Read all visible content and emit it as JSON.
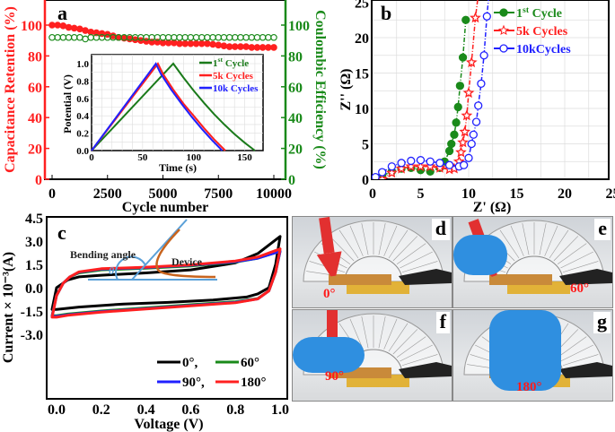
{
  "chart_data": [
    {
      "panel": "a",
      "type": "scatter",
      "xlabel": "Cycle number",
      "ylabel_left": "Capacitance Retention (%)",
      "ylabel_right": "Coulombic Efficiency (%)",
      "xlim": [
        -500,
        10500
      ],
      "ylim": [
        0,
        116
      ],
      "xticks": [
        "0",
        "2500",
        "5000",
        "7500",
        "10000"
      ],
      "yticks": [
        "0",
        "20",
        "40",
        "60",
        "80",
        "100"
      ],
      "colors": {
        "retention": "#ff2020",
        "coulombic": "#1a8a1a"
      },
      "x": [
        0,
        250,
        500,
        750,
        1000,
        1250,
        1500,
        1750,
        2000,
        2250,
        2500,
        2750,
        3000,
        3250,
        3500,
        3750,
        4000,
        4250,
        4500,
        4750,
        5000,
        5250,
        5500,
        5750,
        6000,
        6250,
        6500,
        6750,
        7000,
        7250,
        7500,
        7750,
        8000,
        8250,
        8500,
        8750,
        9000,
        9250,
        9500,
        9750,
        10000
      ],
      "series": [
        {
          "key": "retention",
          "values": [
            100,
            100,
            99.5,
            98.5,
            98,
            97.5,
            96.5,
            95.5,
            95,
            94.5,
            94,
            93,
            92,
            91.5,
            91,
            90.5,
            90,
            89.5,
            89,
            89,
            88.5,
            88.5,
            88.5,
            88,
            88,
            88,
            88,
            88,
            88,
            87.5,
            87,
            86.5,
            86,
            86,
            86,
            86,
            85.5,
            85.5,
            85.5,
            85.5,
            85.5
          ]
        },
        {
          "key": "coulombic",
          "values": [
            92,
            92,
            92,
            92,
            92,
            92,
            91,
            92,
            92,
            92,
            92,
            92,
            92,
            92,
            92,
            92,
            92,
            92,
            92,
            92,
            92,
            92,
            92,
            92,
            92,
            92,
            92,
            92,
            92,
            92,
            92,
            92,
            92,
            92,
            92,
            92,
            92,
            92,
            92,
            92,
            92
          ]
        }
      ],
      "inset": {
        "type": "line",
        "xlabel": "Time (s)",
        "ylabel": "Potential (V)",
        "xlim": [
          0,
          168
        ],
        "ylim": [
          0,
          1.1
        ],
        "xticks": [
          "0",
          "50",
          "100",
          "150"
        ],
        "yticks": [
          "0.0",
          "0.2",
          "0.4",
          "0.6",
          "0.8",
          "1.0"
        ],
        "grid": true,
        "legend_position": "top-right",
        "series": [
          {
            "name": "1st Cycle",
            "color": "#1a7a1a",
            "points": [
              [
                0,
                0
              ],
              [
                80,
                1.0
              ],
              [
                90,
                0.84
              ],
              [
                100,
                0.69
              ],
              [
                110,
                0.55
              ],
              [
                120,
                0.42
              ],
              [
                130,
                0.3
              ],
              [
                140,
                0.19
              ],
              [
                150,
                0.09
              ],
              [
                160,
                0
              ]
            ]
          },
          {
            "name": "5k Cycles",
            "color": "#ff2020",
            "points": [
              [
                0,
                0
              ],
              [
                65,
                1.0
              ],
              [
                70,
                0.88
              ],
              [
                80,
                0.7
              ],
              [
                90,
                0.54
              ],
              [
                100,
                0.4
              ],
              [
                110,
                0.26
              ],
              [
                120,
                0.13
              ],
              [
                131,
                0
              ]
            ]
          },
          {
            "name": "10k Cycles",
            "color": "#2020ff",
            "points": [
              [
                0,
                0
              ],
              [
                63,
                1.0
              ],
              [
                68,
                0.88
              ],
              [
                78,
                0.7
              ],
              [
                88,
                0.54
              ],
              [
                98,
                0.39
              ],
              [
                108,
                0.25
              ],
              [
                118,
                0.12
              ],
              [
                128,
                0
              ]
            ]
          }
        ]
      }
    },
    {
      "panel": "b",
      "type": "scatter",
      "xlabel": "Z' (Ω)",
      "ylabel": "Z'' (Ω)",
      "xlim": [
        0,
        25
      ],
      "ylim": [
        0,
        25
      ],
      "xticks": [
        "0",
        "5",
        "10",
        "15",
        "20",
        "25"
      ],
      "yticks": [
        "0",
        "5",
        "10",
        "15",
        "20",
        "25"
      ],
      "grid": true,
      "legend_position": "top-right",
      "series": [
        {
          "name": "1st Cycle",
          "color": "#1a8a1a",
          "marker": "filled-circle",
          "points": [
            [
              0.3,
              0
            ],
            [
              1,
              0.5
            ],
            [
              2,
              1.1
            ],
            [
              3,
              1.5
            ],
            [
              4,
              1.6
            ],
            [
              5,
              1.3
            ],
            [
              6,
              1.1
            ],
            [
              7,
              1.6
            ],
            [
              7.5,
              2.5
            ],
            [
              8,
              4
            ],
            [
              8.2,
              5
            ],
            [
              8.5,
              6.3
            ],
            [
              8.7,
              8
            ],
            [
              8.9,
              10.2
            ],
            [
              9.1,
              13.2
            ],
            [
              9.4,
              17.2
            ],
            [
              9.7,
              22.5
            ]
          ]
        },
        {
          "name": "5k Cycles",
          "color": "#ff2020",
          "marker": "open-star",
          "points": [
            [
              1,
              0
            ],
            [
              2,
              0.9
            ],
            [
              3,
              1.5
            ],
            [
              4,
              1.8
            ],
            [
              5,
              1.8
            ],
            [
              6,
              1.8
            ],
            [
              7,
              1.6
            ],
            [
              8,
              1.4
            ],
            [
              8.5,
              1.5
            ],
            [
              9,
              2.5
            ],
            [
              9.2,
              3.8
            ],
            [
              9.4,
              5.2
            ],
            [
              9.6,
              6.7
            ],
            [
              9.8,
              9
            ],
            [
              10,
              12.2
            ],
            [
              10.3,
              16.5
            ],
            [
              10.7,
              22.8
            ],
            [
              11,
              26
            ]
          ]
        },
        {
          "name": "10kCycles",
          "color": "#2020ff",
          "marker": "open-circle",
          "points": [
            [
              0.3,
              0.3
            ],
            [
              1,
              1
            ],
            [
              2,
              1.8
            ],
            [
              3,
              2.3
            ],
            [
              4,
              2.6
            ],
            [
              5,
              2.7
            ],
            [
              6,
              2.5
            ],
            [
              7,
              2.3
            ],
            [
              8,
              2
            ],
            [
              9,
              1.8
            ],
            [
              9.5,
              2
            ],
            [
              10,
              3
            ],
            [
              10.3,
              5
            ],
            [
              10.5,
              6.3
            ],
            [
              10.8,
              8.1
            ],
            [
              11,
              10.4
            ],
            [
              11.3,
              13.5
            ],
            [
              11.6,
              17.5
            ],
            [
              11.9,
              23
            ],
            [
              12.1,
              26
            ]
          ]
        }
      ]
    },
    {
      "panel": "c",
      "type": "line",
      "xlabel": "Voltage (V)",
      "ylabel": "Current × 10⁻³(A)",
      "xlim": [
        -0.045,
        1.03
      ],
      "ylim": [
        -3.3,
        4.5
      ],
      "xticks": [
        "0.0",
        "0.2",
        "0.4",
        "0.6",
        "0.8",
        "1.0"
      ],
      "yticks": [
        "-3.0",
        "-1.5",
        "0.0",
        "1.5",
        "3.0",
        "4.5"
      ],
      "legend_position": "bottom-right",
      "inset_labels": {
        "bending": "Bending angle",
        "theta": "θ",
        "device": "Device"
      },
      "series": [
        {
          "name": "0°,",
          "color": "#000000",
          "points": [
            [
              -0.02,
              -1.4
            ],
            [
              0,
              0
            ],
            [
              0.05,
              0.5
            ],
            [
              0.1,
              0.7
            ],
            [
              0.2,
              0.8
            ],
            [
              0.4,
              0.95
            ],
            [
              0.6,
              1.15
            ],
            [
              0.8,
              1.6
            ],
            [
              0.9,
              2.2
            ],
            [
              1.0,
              3.3
            ],
            [
              0.98,
              1.5
            ],
            [
              0.95,
              0
            ],
            [
              0.9,
              -0.4
            ],
            [
              0.85,
              -0.6
            ],
            [
              0.7,
              -0.8
            ],
            [
              0.5,
              -0.95
            ],
            [
              0.3,
              -1.05
            ],
            [
              0.1,
              -1.25
            ],
            [
              0,
              -1.4
            ],
            [
              -0.02,
              -1.4
            ]
          ]
        },
        {
          "name": "60°",
          "color": "#1a8a1a",
          "points": [
            [
              -0.02,
              -1.8
            ],
            [
              0,
              -0.5
            ],
            [
              0.03,
              0.3
            ],
            [
              0.06,
              0.7
            ],
            [
              0.1,
              0.95
            ],
            [
              0.2,
              1.15
            ],
            [
              0.4,
              1.25
            ],
            [
              0.6,
              1.4
            ],
            [
              0.8,
              1.65
            ],
            [
              0.9,
              1.9
            ],
            [
              1.0,
              2.35
            ],
            [
              0.98,
              1.0
            ],
            [
              0.95,
              -0.2
            ],
            [
              0.9,
              -0.7
            ],
            [
              0.8,
              -0.9
            ],
            [
              0.6,
              -1.1
            ],
            [
              0.4,
              -1.3
            ],
            [
              0.2,
              -1.5
            ],
            [
              0.05,
              -1.7
            ],
            [
              0,
              -1.8
            ],
            [
              -0.02,
              -1.8
            ]
          ]
        },
        {
          "name": "90°,",
          "color": "#2020ff",
          "points": [
            [
              -0.02,
              -1.85
            ],
            [
              0,
              -0.5
            ],
            [
              0.03,
              0.3
            ],
            [
              0.06,
              0.7
            ],
            [
              0.1,
              1.0
            ],
            [
              0.2,
              1.2
            ],
            [
              0.4,
              1.3
            ],
            [
              0.6,
              1.45
            ],
            [
              0.8,
              1.68
            ],
            [
              0.9,
              1.9
            ],
            [
              1.0,
              2.35
            ],
            [
              0.98,
              1.0
            ],
            [
              0.95,
              -0.2
            ],
            [
              0.9,
              -0.72
            ],
            [
              0.8,
              -0.95
            ],
            [
              0.6,
              -1.15
            ],
            [
              0.4,
              -1.35
            ],
            [
              0.2,
              -1.55
            ],
            [
              0.05,
              -1.75
            ],
            [
              0,
              -1.85
            ],
            [
              -0.02,
              -1.85
            ]
          ]
        },
        {
          "name": "180°",
          "color": "#ff2020",
          "points": [
            [
              -0.02,
              -1.9
            ],
            [
              0,
              -0.5
            ],
            [
              0.03,
              0.3
            ],
            [
              0.06,
              0.7
            ],
            [
              0.1,
              1.02
            ],
            [
              0.2,
              1.22
            ],
            [
              0.4,
              1.32
            ],
            [
              0.6,
              1.47
            ],
            [
              0.8,
              1.72
            ],
            [
              0.9,
              1.97
            ],
            [
              1.0,
              2.5
            ],
            [
              0.98,
              1.0
            ],
            [
              0.95,
              -0.2
            ],
            [
              0.9,
              -0.72
            ],
            [
              0.8,
              -0.97
            ],
            [
              0.6,
              -1.17
            ],
            [
              0.4,
              -1.37
            ],
            [
              0.2,
              -1.57
            ],
            [
              0.05,
              -1.78
            ],
            [
              0,
              -1.9
            ],
            [
              -0.02,
              -1.9
            ]
          ]
        }
      ]
    }
  ],
  "panel_labels": {
    "a": "a",
    "b": "b",
    "c": "c"
  },
  "photos": [
    {
      "label": "d",
      "angle": "0°"
    },
    {
      "label": "e",
      "angle": "60°"
    },
    {
      "label": "f",
      "angle": "90°"
    },
    {
      "label": "g",
      "angle": "180°"
    }
  ]
}
